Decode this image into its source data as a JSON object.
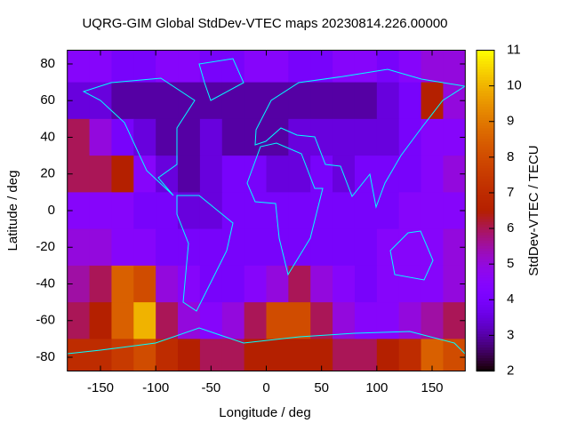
{
  "chart_data": {
    "type": "heatmap",
    "title": "UQRG-GIM Global StdDev-VTEC maps 20230814.226.00000",
    "xlabel": "Longitude / deg",
    "ylabel": "Latitude / deg",
    "colorbar_label": "StdDev-VTEC / TECU",
    "x": [
      -170,
      -150,
      -130,
      -110,
      -90,
      -70,
      -50,
      -30,
      -10,
      10,
      30,
      50,
      70,
      90,
      110,
      130,
      150,
      170
    ],
    "y": [
      80,
      60,
      40,
      20,
      0,
      -20,
      -40,
      -60,
      -80
    ],
    "cell_size": 20,
    "values": [
      [
        4.5,
        4.5,
        4,
        4,
        4.5,
        4.5,
        4,
        4,
        4.5,
        4.5,
        4,
        4,
        4.5,
        4.5,
        4,
        4.5,
        5,
        5
      ],
      [
        3.5,
        3.5,
        3,
        3,
        3,
        3,
        3,
        3,
        3,
        3,
        3,
        3,
        3,
        3,
        3.5,
        4,
        6.5,
        5
      ],
      [
        6,
        5,
        4,
        3.5,
        3,
        3,
        3.5,
        3,
        3,
        3,
        3.5,
        3.5,
        3.5,
        3.5,
        3.5,
        4,
        4.5,
        4.5
      ],
      [
        6,
        6,
        6.5,
        4.5,
        3.5,
        3,
        3.5,
        4,
        4,
        3.5,
        3.5,
        4,
        3.5,
        4,
        4,
        4,
        4.5,
        5
      ],
      [
        4.5,
        4.5,
        4.5,
        4,
        4,
        3.5,
        3.5,
        4,
        4,
        4,
        4,
        4,
        4,
        4,
        4,
        4.5,
        4.5,
        4.5
      ],
      [
        5,
        5,
        4.5,
        4.5,
        4,
        4,
        4,
        4,
        4,
        4,
        4,
        4,
        4,
        4,
        4.5,
        4.5,
        4.5,
        5
      ],
      [
        5.5,
        6,
        8.5,
        8,
        5,
        4.5,
        4,
        4,
        4.5,
        5,
        6,
        5,
        4.5,
        4,
        4.5,
        4.5,
        4.5,
        5
      ],
      [
        6,
        6.5,
        8.5,
        10,
        6,
        5,
        4.5,
        5,
        6,
        8,
        8,
        6,
        5,
        4.5,
        4.5,
        5,
        5.5,
        6
      ],
      [
        7,
        7,
        7.5,
        8,
        7,
        6.5,
        6,
        6,
        6.5,
        6.5,
        6.5,
        6.5,
        6,
        6,
        6.5,
        7,
        8.5,
        8
      ]
    ],
    "xlim": [
      -180,
      180
    ],
    "ylim": [
      -87.5,
      87.5
    ],
    "xticks": [
      -150,
      -100,
      -50,
      0,
      50,
      100,
      150
    ],
    "yticks": [
      -80,
      -60,
      -40,
      -20,
      0,
      20,
      40,
      60,
      80
    ],
    "zlim": [
      2,
      11
    ],
    "zticks": [
      2,
      3,
      4,
      5,
      6,
      7,
      8,
      9,
      10,
      11
    ]
  }
}
